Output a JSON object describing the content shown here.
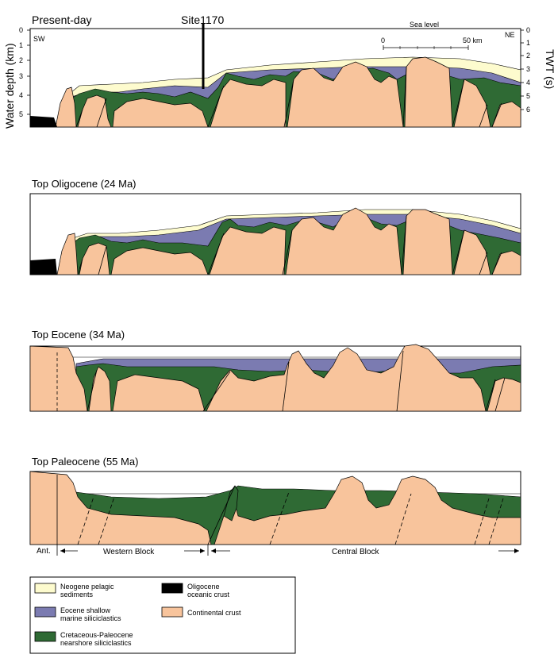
{
  "panels": [
    {
      "title": "Present-day"
    },
    {
      "title": "Top Oligocene (24 Ma)"
    },
    {
      "title": "Top Eocene (34 Ma)"
    },
    {
      "title": "Top Paleocene (55 Ma)"
    }
  ],
  "labels": {
    "site": "Site1170",
    "sea_level": "Sea level",
    "sw": "SW",
    "ne": "NE",
    "water_depth_axis": "Water depth (km)",
    "twt_axis": "TWT (s)",
    "scale_zero": "0",
    "scale_end": "50 km"
  },
  "depth_ticks": [
    "0",
    "1",
    "2",
    "3",
    "4",
    "5"
  ],
  "twt_ticks": [
    "0",
    "1",
    "2",
    "3",
    "4",
    "5",
    "6"
  ],
  "blocks": {
    "ant": "Ant.",
    "western": "Western Block",
    "central": "Central Block"
  },
  "legend": {
    "neogene_line1": "Neogene pelagic",
    "neogene_line2": "sediments",
    "oligocene_line1": "Oligocene",
    "oligocene_line2": "oceanic crust",
    "eocene_line1": "Eocene shallow",
    "eocene_line2": "marine siliciclastics",
    "continental": "Continental crust",
    "cretaceous_line1": "Cretaceous-Paleocene",
    "cretaceous_line2": "nearshore siliciclastics"
  },
  "colors": {
    "neogene": "#fdfbce",
    "eocene": "#7b7bb1",
    "cretaceous": "#2f6a34",
    "continental": "#f8c49c",
    "oceanic": "#000000"
  }
}
